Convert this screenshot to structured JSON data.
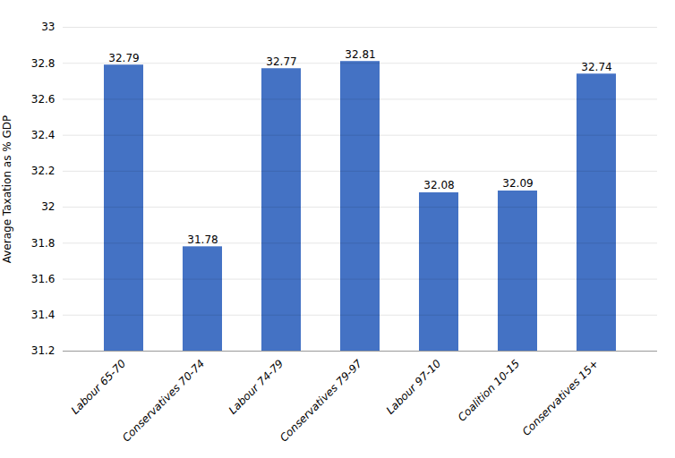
{
  "chart_data": {
    "type": "bar",
    "categories": [
      "Labour 65-70",
      "Conservatives 70-74",
      "Labour 74-79",
      "Conservatives 79-97",
      "Labour 97-10",
      "Coalition 10-15",
      "Conservatives 15+"
    ],
    "values": [
      32.79,
      31.78,
      32.77,
      32.81,
      32.08,
      32.09,
      32.74
    ],
    "color": "#4472C4",
    "ylabel": "Average Taxation as % GDP",
    "ylim": [
      31.2,
      33.0
    ],
    "yticks": [
      31.2,
      31.4,
      31.6,
      31.8,
      32,
      32.2,
      32.4,
      32.6,
      32.8,
      33
    ],
    "grid": true,
    "data_labels": true
  }
}
